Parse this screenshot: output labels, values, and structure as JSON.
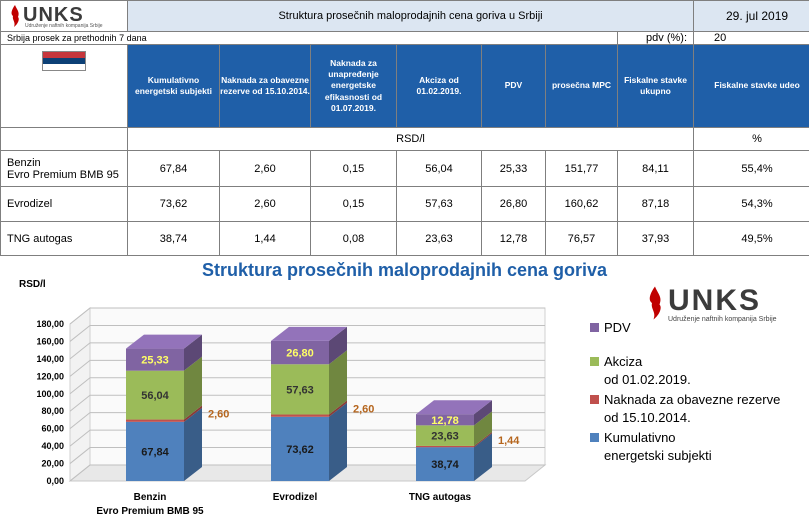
{
  "header": {
    "logo_text": "UNKS",
    "logo_sub": "Udruženje naftnih kompanija Srbije",
    "title": "Struktura prosečnih maloprodajnih cena goriva u Srbiji",
    "date": "29. jul 2019",
    "note": "Srbija prosek za prethodnih 7 dana",
    "pdv_label": "pdv (%):",
    "pdv_value": "20"
  },
  "columns": [
    "Kumulativno energetski subjekti",
    "Naknada za obavezne rezerve od 15.10.2014.",
    "Naknada za unapređenje energetske efikasnosti od 01.07.2019.",
    "Akciza od 01.02.2019.",
    "PDV",
    "prosečna MPC",
    "Fiskalne stavke ukupno",
    "Fiskalne stavke udeo"
  ],
  "units": {
    "rsd": "RSD/l",
    "pct": "%"
  },
  "rows": [
    {
      "name1": "Benzin",
      "name2": "Evro Premium BMB 95",
      "cells": [
        "67,84",
        "2,60",
        "0,15",
        "56,04",
        "25,33",
        "151,77",
        "84,11",
        "55,4%"
      ]
    },
    {
      "name1": "Evrodizel",
      "name2": "",
      "cells": [
        "73,62",
        "2,60",
        "0,15",
        "57,63",
        "26,80",
        "160,62",
        "87,18",
        "54,3%"
      ]
    },
    {
      "name1": "TNG autogas",
      "name2": "",
      "cells": [
        "38,74",
        "1,44",
        "0,08",
        "23,63",
        "12,78",
        "76,57",
        "37,93",
        "49,5%"
      ]
    }
  ],
  "colors": {
    "header_blue": "#1f5fa8",
    "pdv": "#8064a2",
    "akciza": "#9bbb59",
    "naknada": "#c0504d",
    "kumulativno": "#4f81bd",
    "brand_red": "#c00000"
  },
  "chart_data": {
    "type": "bar",
    "stacked": true,
    "title": "Struktura prosečnih maloprodajnih cena goriva",
    "ylabel": "RSD/l",
    "ylim": [
      0,
      180
    ],
    "yticks": [
      "0,00",
      "20,00",
      "40,00",
      "60,00",
      "80,00",
      "100,00",
      "120,00",
      "140,00",
      "160,00",
      "180,00"
    ],
    "categories": [
      "Benzin",
      "Evrodizel",
      "TNG autogas"
    ],
    "category_sublabels": [
      "Evro Premium BMB 95",
      "",
      ""
    ],
    "series": [
      {
        "name": "Kumulativno energetski subjekti",
        "legend": [
          "Kumulativno",
          "energetski subjekti"
        ],
        "color": "#4f81bd",
        "values": [
          67.84,
          73.62,
          38.74
        ],
        "labels": [
          "67,84",
          "73,62",
          "38,74"
        ]
      },
      {
        "name": "Naknada za obavezne rezerve od 15.10.2014.",
        "legend": [
          "Naknada za obavezne rezerve",
          "od 15.10.2014."
        ],
        "color": "#c0504d",
        "values": [
          2.6,
          2.6,
          1.44
        ],
        "labels": [
          "2,60",
          "2,60",
          "1,44"
        ]
      },
      {
        "name": "Akciza od 01.02.2019.",
        "legend": [
          "Akciza",
          "od 01.02.2019."
        ],
        "color": "#9bbb59",
        "values": [
          56.04,
          57.63,
          23.63
        ],
        "labels": [
          "56,04",
          "57,63",
          "23,63"
        ]
      },
      {
        "name": "PDV",
        "legend": [
          "PDV"
        ],
        "color": "#8064a2",
        "values": [
          25.33,
          26.8,
          12.78
        ],
        "labels": [
          "25,33",
          "26,80",
          "12,78"
        ]
      }
    ]
  }
}
